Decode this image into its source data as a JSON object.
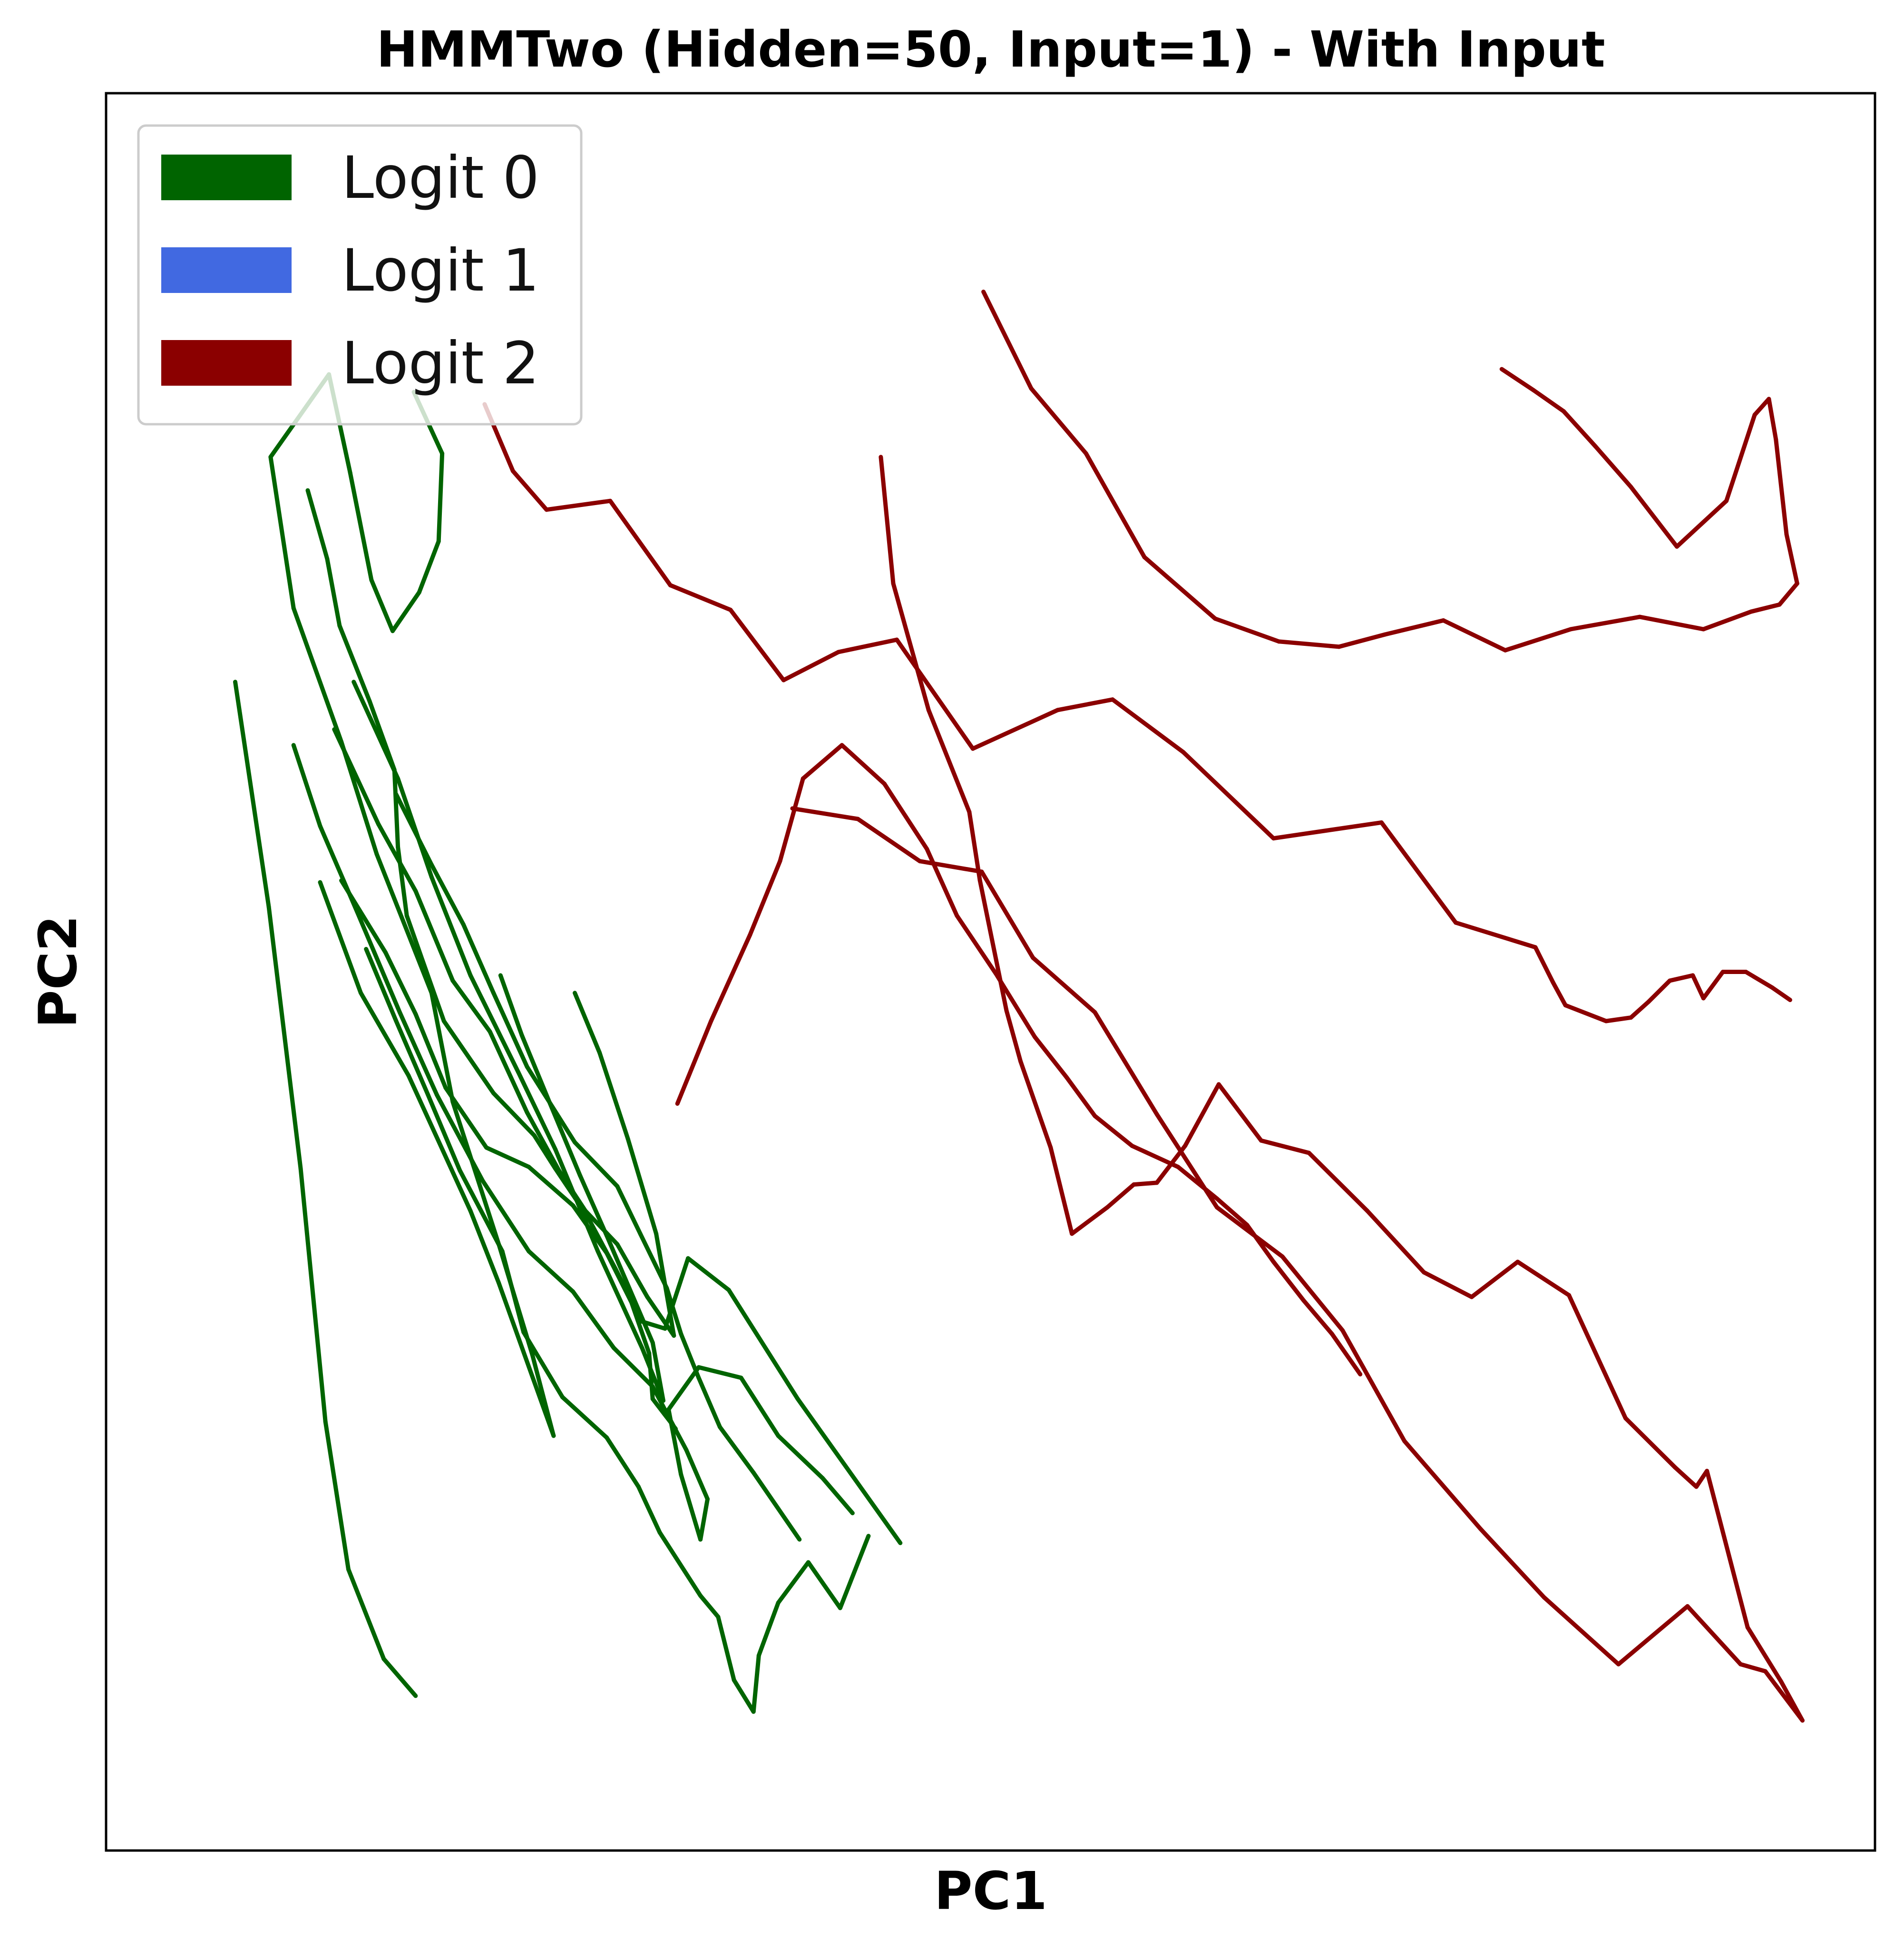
{
  "chart_data": {
    "type": "line",
    "title": "HMMTwo (Hidden=50, Input=1) - With Input",
    "xlabel": "PC1",
    "ylabel": "PC2",
    "xlim": [
      0,
      100
    ],
    "ylim": [
      0,
      100
    ],
    "ticks_shown": false,
    "grid": false,
    "legend_position": "top-left",
    "legend": [
      {
        "name": "Logit 0",
        "color": "#006400"
      },
      {
        "name": "Logit 1",
        "color": "#4169e1"
      },
      {
        "name": "Logit 2",
        "color": "#8b0000"
      }
    ],
    "series": [
      {
        "name": "Logit 0",
        "color": "#006400",
        "trajectories": [
          {
            "x": [
              7.3,
              9.2,
              11.0,
              12.4,
              13.7,
              15.7,
              17.5
            ],
            "y": [
              66.5,
              53.7,
              38.8,
              24.4,
              16.0,
              10.9,
              8.8
            ]
          },
          {
            "x": [
              17.4,
              19.0,
              18.8,
              17.7,
              16.2,
              15.0,
              13.8,
              12.6
            ],
            "y": [
              83.0,
              79.5,
              74.5,
              71.6,
              69.4,
              72.3,
              78.4,
              84.0
            ]
          },
          {
            "x": [
              12.6,
              9.3,
              10.6,
              13.3,
              15.3,
              18.4,
              19.6,
              22.2,
              24.1,
              25.3,
              22.2,
              20.6,
              17.1,
              14.4,
              12.1
            ],
            "y": [
              84.0,
              79.3,
              70.7,
              63.1,
              56.7,
              48.8,
              42.6,
              34.5,
              28.2,
              23.6,
              32.3,
              36.4,
              44.1,
              48.8,
              55.1
            ]
          },
          {
            "x": [
              14.0,
              16.5,
              18.4,
              20.6,
              23.3,
              25.4,
              27.8,
              30.3,
              31.5,
              30.9,
              28.3,
              26.8,
              25.1,
              23.5,
              22.3
            ],
            "y": [
              66.5,
              61.0,
              55.4,
              49.8,
              44.3,
              39.9,
              34.1,
              28.6,
              25.6,
              28.9,
              35.0,
              38.4,
              42.5,
              46.4,
              49.8
            ]
          },
          {
            "x": [
              14.7,
              16.4,
              18.2,
              20.0,
              22.4,
              23.6,
              25.8,
              28.3,
              30.1,
              31.3,
              33.6,
              34.6,
              35.5,
              36.6,
              36.9,
              38.0,
              39.7,
              41.5,
              43.1
            ],
            "y": [
              51.3,
              47.2,
              43.0,
              38.7,
              34.1,
              29.5,
              25.8,
              23.5,
              20.7,
              18.1,
              14.5,
              13.3,
              9.7,
              7.9,
              11.1,
              14.1,
              16.4,
              13.8,
              17.9
            ]
          },
          {
            "x": [
              10.6,
              12.1,
              14.2,
              16.6,
              18.7,
              21.3,
              23.9,
              26.4,
              28.7,
              30.9,
              32.8,
              34.0,
              33.6,
              32.5,
              31.8,
              33.5,
              35.9,
              38.0,
              40.5,
              42.2
            ],
            "y": [
              62.9,
              58.3,
              53.4,
              47.7,
              43.0,
              38.1,
              34.1,
              31.8,
              28.6,
              26.4,
              22.8,
              20.0,
              17.7,
              21.4,
              25.1,
              27.5,
              26.9,
              23.6,
              21.2,
              19.2
            ]
          },
          {
            "x": [
              12.9,
              15.4,
              17.5,
              19.6,
              21.7,
              23.8,
              25.6,
              27.1,
              28.9,
              30.6,
              32.1,
              31.1,
              29.5,
              27.9,
              26.5
            ],
            "y": [
              63.8,
              58.4,
              54.6,
              49.5,
              46.6,
              42.0,
              38.7,
              36.4,
              34.5,
              31.5,
              29.3,
              35.1,
              40.5,
              45.4,
              48.8
            ]
          },
          {
            "x": [
              11.4,
              12.5,
              13.2,
              14.9,
              16.3,
              16.5,
              17.0,
              19.1,
              21.9,
              24.2,
              25.4,
              27.2,
              28.8,
              30.3,
              31.6,
              32.9,
              35.2,
              39.1,
              44.9
            ],
            "y": [
              77.4,
              73.5,
              69.7,
              65.4,
              61.5,
              57.1,
              53.2,
              47.2,
              43.1,
              40.7,
              38.8,
              36.1,
              33.1,
              30.1,
              29.7,
              33.7,
              31.9,
              25.7,
              17.5
            ]
          },
          {
            "x": [
              16.4,
              18.4,
              20.2,
              21.9,
              23.8,
              26.5,
              28.9,
              30.2,
              31.7,
              32.5,
              33.5,
              34.7,
              36.6,
              39.2
            ],
            "y": [
              60.1,
              56.1,
              52.7,
              48.8,
              44.6,
              40.3,
              37.8,
              35.1,
              32.0,
              29.4,
              26.9,
              24.1,
              21.5,
              17.7
            ]
          },
          {
            "x": [
              13.3,
              15.8,
              17.5,
              19.2,
              21.5,
              23.9,
              26.4,
              28.3,
              29.7,
              30.7,
              30.9,
              32.2
            ],
            "y": [
              55.2,
              51.1,
              47.6,
              43.4,
              40.0,
              38.9,
              36.7,
              34.0,
              31.2,
              28.3,
              25.7,
              24.0
            ]
          }
        ]
      },
      {
        "name": "Logit 2",
        "color": "#8b0000",
        "trajectories": [
          {
            "x": [
              43.8,
              44.5,
              46.5,
              48.8,
              49.4,
              50.9,
              51.7,
              53.4,
              54.6,
              56.6,
              58.1,
              59.4,
              61.0,
              62.9,
              65.3,
              68.0,
              71.3,
              74.5,
              77.2,
              79.8,
              82.7,
              85.9,
              88.7,
              89.9,
              90.5,
              91.2,
              92.8,
              94.7,
              95.9,
              93.8,
              92.4,
              89.4,
              85.5,
              81.3,
              77.7,
              73.4,
              69.9,
              66.5,
              62.8,
              59.4,
              55.9,
              52.4,
              49.5,
              46.0,
              42.5,
              38.8
            ],
            "y": [
              79.3,
              72.1,
              64.9,
              59.1,
              55.2,
              47.8,
              44.9,
              40.0,
              35.1,
              36.6,
              37.9,
              38.0,
              40.1,
              43.6,
              40.4,
              39.7,
              36.4,
              32.9,
              31.5,
              33.5,
              31.6,
              24.6,
              21.8,
              20.7,
              21.6,
              18.9,
              12.7,
              9.6,
              7.4,
              10.2,
              10.6,
              13.9,
              10.6,
              14.4,
              18.3,
              23.3,
              29.6,
              33.8,
              36.6,
              41.9,
              47.7,
              50.8,
              55.7,
              56.3,
              58.7,
              59.3
            ]
          },
          {
            "x": [
              49.6,
              52.3,
              55.4,
              58.7,
              62.7,
              66.3,
              69.7,
              72.3,
              75.6,
              79.1,
              82.8,
              86.7,
              90.3,
              93.0,
              94.6,
              95.6,
              95.0,
              94.4,
              94.0,
              93.2,
              91.6,
              88.8,
              86.2,
              84.2,
              82.4,
              80.7,
              78.9
            ],
            "y": [
              88.7,
              83.2,
              79.5,
              73.6,
              70.1,
              68.8,
              68.5,
              69.2,
              70.0,
              68.3,
              69.5,
              70.2,
              69.5,
              70.5,
              70.9,
              72.1,
              74.9,
              80.3,
              82.6,
              81.7,
              76.8,
              74.2,
              77.6,
              79.9,
              81.9,
              83.1,
              84.3
            ]
          },
          {
            "x": [
              21.4,
              23.0,
              24.9,
              28.5,
              31.9,
              35.3,
              38.3,
              41.4,
              44.7,
              49.0,
              53.8,
              56.9,
              60.9,
              66.0,
              72.1,
              76.3,
              80.8,
              81.8,
              82.5,
              84.8,
              86.2,
              87.2,
              88.4,
              89.7,
              90.3,
              91.4,
              92.7,
              94.2,
              95.2
            ],
            "y": [
              82.3,
              78.5,
              76.3,
              76.8,
              72.0,
              70.6,
              66.6,
              68.2,
              68.9,
              62.7,
              64.9,
              65.5,
              62.5,
              57.6,
              58.5,
              52.8,
              51.4,
              49.4,
              48.1,
              47.2,
              47.4,
              48.3,
              49.5,
              49.8,
              48.5,
              50.0,
              50.0,
              49.1,
              48.4
            ]
          },
          {
            "x": [
              32.3,
              34.2,
              36.4,
              38.1,
              39.4,
              41.6,
              44.0,
              46.4,
              48.1,
              50.3,
              52.5,
              54.3,
              55.9,
              58.0,
              60.6,
              62.8,
              64.5,
              66.0,
              67.7,
              69.3,
              70.9
            ],
            "y": [
              42.5,
              47.2,
              52.1,
              56.3,
              61.0,
              62.9,
              60.7,
              57.0,
              53.2,
              49.9,
              46.3,
              44.0,
              41.8,
              40.1,
              38.9,
              37.1,
              35.6,
              33.5,
              31.3,
              29.4,
              27.1
            ]
          }
        ]
      },
      {
        "name": "Logit 1",
        "color": "#4169e1",
        "trajectories": []
      }
    ]
  }
}
